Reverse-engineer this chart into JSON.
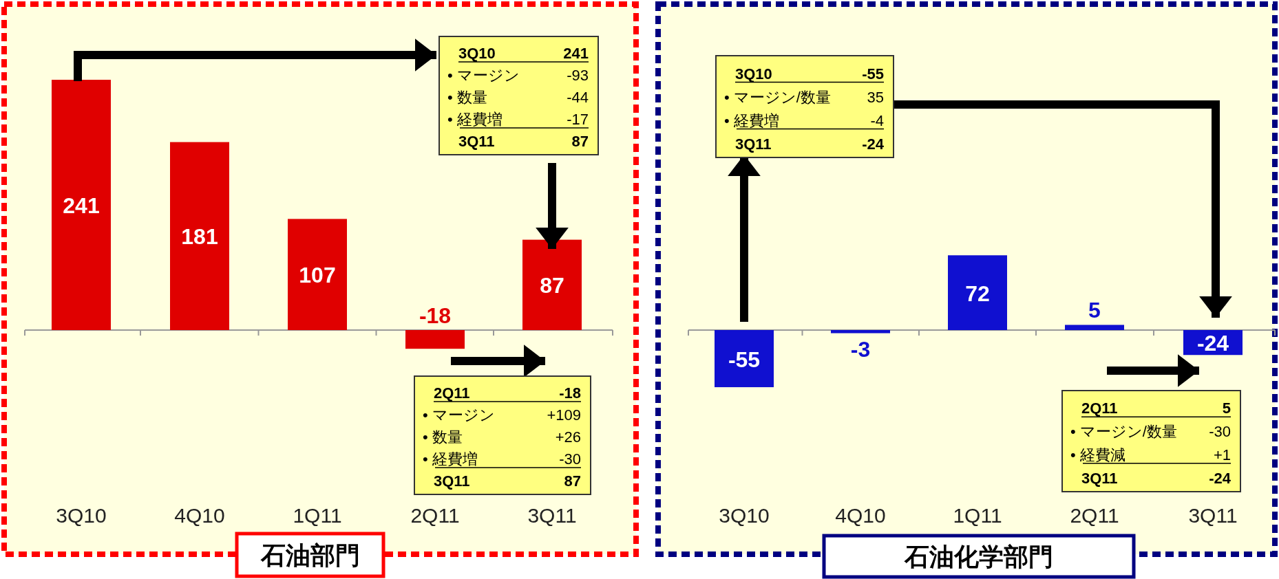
{
  "chart_data": [
    {
      "type": "bar",
      "title": "石油部門",
      "categories": [
        "3Q10",
        "4Q10",
        "1Q11",
        "2Q11",
        "3Q11"
      ],
      "values": [
        241,
        181,
        107,
        -18,
        87
      ],
      "color": "#e00000",
      "data_labels": true,
      "annotations": [
        "3Q10",
        "241",
        "• マージン",
        "-93",
        "• 数量",
        "-44",
        "• 経費増",
        "-17",
        "3Q11",
        "87",
        "2Q11",
        "-18",
        "• マージン",
        "+109",
        "• 数量",
        "+26",
        "• 経費増",
        "-30",
        "3Q11",
        "87"
      ]
    },
    {
      "type": "bar",
      "title": "石油化学部門",
      "categories": [
        "3Q10",
        "4Q10",
        "1Q11",
        "2Q11",
        "3Q11"
      ],
      "values": [
        -55,
        -3,
        72,
        5,
        -24
      ],
      "color": "#1010d0",
      "data_labels": true,
      "annotations": [
        "3Q10",
        "-55",
        "• マージン/数量",
        "35",
        "• 経費増",
        "-4",
        "3Q11",
        "-24",
        "2Q11",
        "5",
        "• マージン/数量",
        "-30",
        "• 経費減",
        "+1",
        "3Q11",
        "-24"
      ]
    }
  ]
}
